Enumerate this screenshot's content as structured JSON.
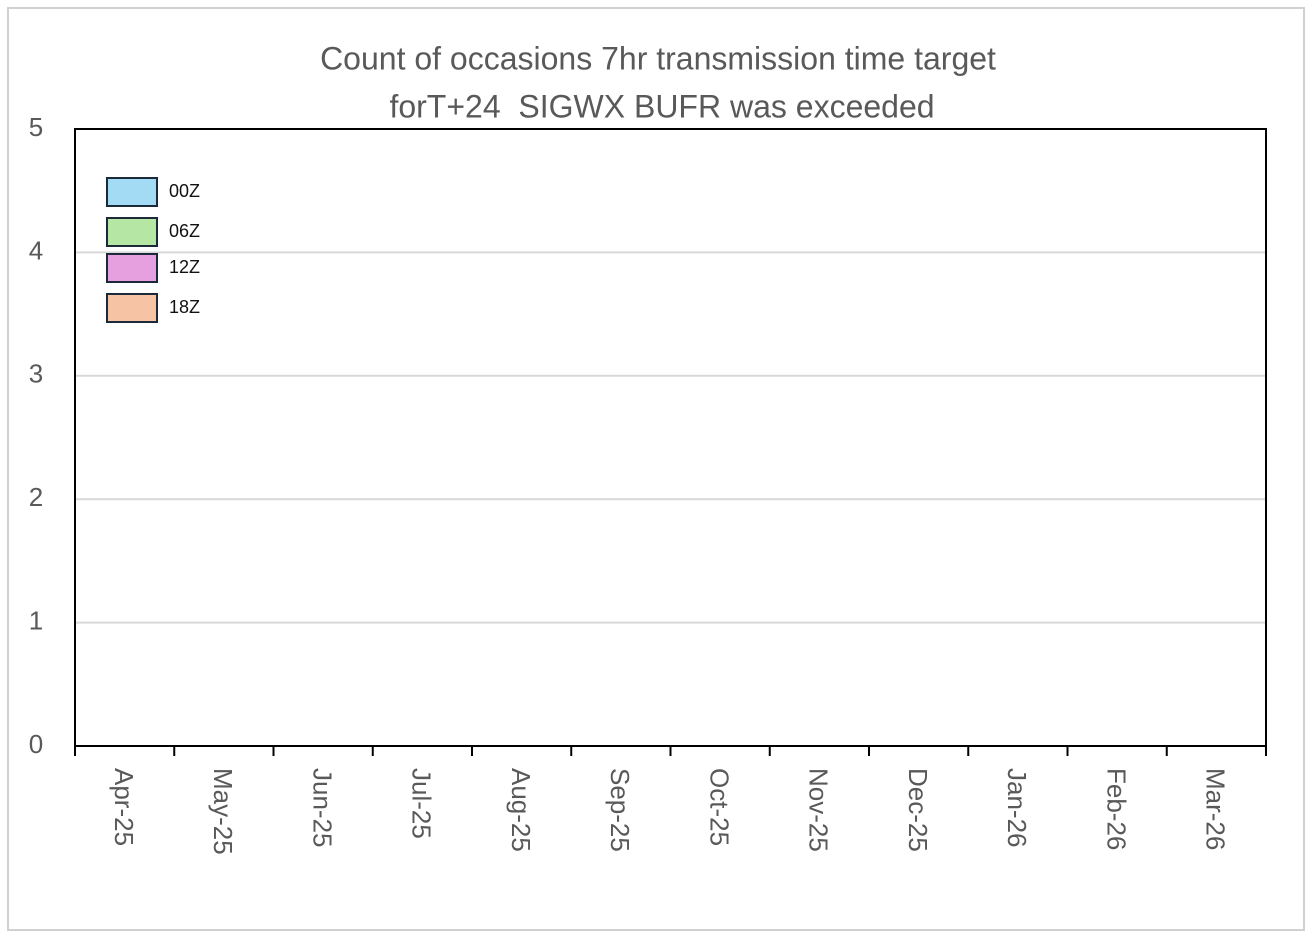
{
  "chart_data": {
    "type": "stacked_bar",
    "title": [
      "Count of occasions 7hr transmission time target",
      "forT+24  SIGWX BUFR was exceeded"
    ],
    "categories": [
      "Apr-25",
      "May-25",
      "Jun-25",
      "Jul-25",
      "Aug-25",
      "Sep-25",
      "Oct-25",
      "Nov-25",
      "Dec-25",
      "Jan-26",
      "Feb-26",
      "Mar-26"
    ],
    "series": [
      {
        "name": "00Z",
        "color": "#a3dbf5",
        "values": [
          0,
          0,
          0,
          0,
          0,
          0,
          0,
          0,
          0,
          0,
          0,
          0
        ]
      },
      {
        "name": "06Z",
        "color": "#b6e6a4",
        "values": [
          0,
          0,
          0,
          0,
          0,
          0,
          0,
          0,
          0,
          0,
          0,
          0
        ]
      },
      {
        "name": "12Z",
        "color": "#e6a0e0",
        "values": [
          0,
          0,
          0,
          0,
          0,
          0,
          0,
          0,
          0,
          0,
          0,
          0
        ]
      },
      {
        "name": "18Z",
        "color": "#f6c4a4",
        "values": [
          0,
          0,
          0,
          0,
          0,
          0,
          0,
          0,
          0,
          0,
          0,
          0
        ]
      }
    ],
    "ylim": [
      0,
      5
    ],
    "yticks": [
      0,
      1,
      2,
      3,
      4,
      5
    ],
    "grid": true,
    "legend": "upper left"
  }
}
